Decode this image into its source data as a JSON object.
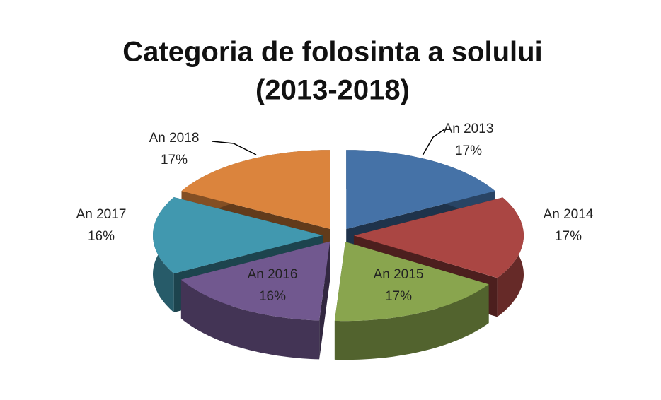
{
  "chart_data": {
    "type": "pie",
    "title": [
      "Categoria de folosinta a solului",
      "(2013-2018)"
    ],
    "categories": [
      "An 2013",
      "An 2014",
      "An 2015",
      "An 2016",
      "An 2017",
      "An 2018"
    ],
    "values": [
      17,
      17,
      17,
      16,
      16,
      17
    ],
    "value_labels": [
      "17%",
      "17%",
      "17%",
      "16%",
      "16%",
      "17%"
    ],
    "colors": [
      "#4572a7",
      "#aa4643",
      "#89a54e",
      "#71588f",
      "#4198af",
      "#db843d"
    ]
  }
}
